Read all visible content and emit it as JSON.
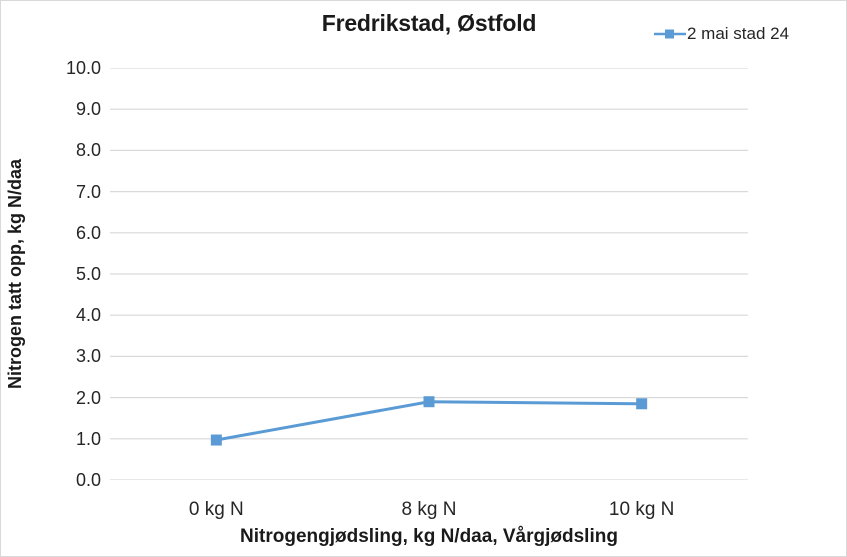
{
  "chart_data": {
    "type": "line",
    "title": "Fredrikstad, Østfold",
    "xlabel": "Nitrogengjødsling, kg N/daa, Vårgjødsling",
    "ylabel": "Nitrogen tatt opp, kg N/daa",
    "categories": [
      "0 kg N",
      "8 kg N",
      "10 kg N"
    ],
    "series": [
      {
        "name": "2 mai stad 24",
        "values": [
          0.97,
          1.9,
          1.85
        ],
        "color": "#5b9bd5",
        "marker": "square"
      }
    ],
    "ylim": [
      0.0,
      10.0
    ],
    "ytick_step": 1.0,
    "ytick_labels": [
      "0.0",
      "1.0",
      "2.0",
      "3.0",
      "4.0",
      "5.0",
      "6.0",
      "7.0",
      "8.0",
      "9.0",
      "10.0"
    ],
    "grid": "horizontal",
    "legend_position": "top-right"
  },
  "colors": {
    "accent": "#5b9bd5",
    "gridline": "#d9d9d9",
    "frame_border": "#d9d9d9",
    "text": "#262626",
    "background": "#ffffff"
  }
}
